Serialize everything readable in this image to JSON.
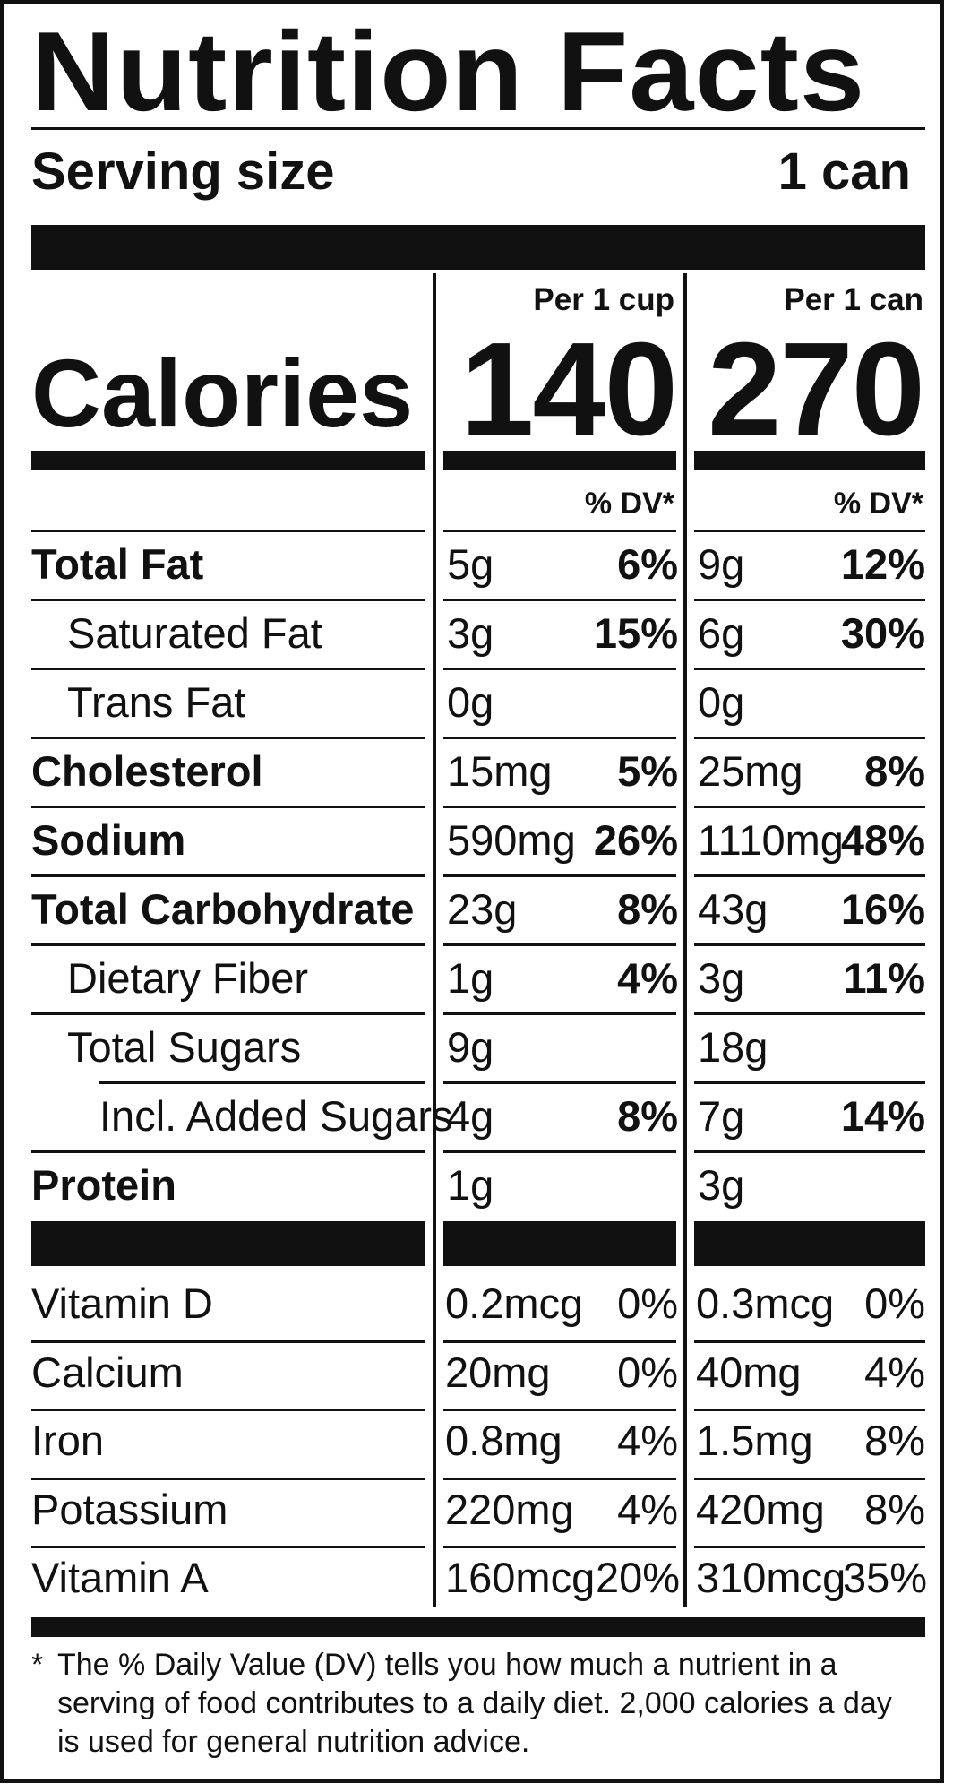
{
  "title": "Nutrition Facts",
  "serving": {
    "label": "Serving size",
    "value": "1 can"
  },
  "columns": [
    {
      "header": "Per 1 cup",
      "calories": "140",
      "dv_header": "% DV*"
    },
    {
      "header": "Per 1 can",
      "calories": "270",
      "dv_header": "% DV*"
    }
  ],
  "calories_label": "Calories",
  "nutrients": [
    {
      "name": "Total Fat",
      "bold": true,
      "indent": 0,
      "cup": {
        "amount": "5g",
        "dv": "6%"
      },
      "can": {
        "amount": "9g",
        "dv": "12%"
      }
    },
    {
      "name": "Saturated Fat",
      "bold": false,
      "indent": 1,
      "cup": {
        "amount": "3g",
        "dv": "15%"
      },
      "can": {
        "amount": "6g",
        "dv": "30%"
      }
    },
    {
      "name": "Trans Fat",
      "bold": false,
      "indent": 1,
      "cup": {
        "amount": "0g",
        "dv": ""
      },
      "can": {
        "amount": "0g",
        "dv": ""
      }
    },
    {
      "name": "Cholesterol",
      "bold": true,
      "indent": 0,
      "cup": {
        "amount": "15mg",
        "dv": "5%"
      },
      "can": {
        "amount": "25mg",
        "dv": "8%"
      }
    },
    {
      "name": "Sodium",
      "bold": true,
      "indent": 0,
      "cup": {
        "amount": "590mg",
        "dv": "26%"
      },
      "can": {
        "amount": "1110mg",
        "dv": "48%"
      }
    },
    {
      "name": "Total Carbohydrate",
      "bold": true,
      "indent": 0,
      "cup": {
        "amount": "23g",
        "dv": "8%"
      },
      "can": {
        "amount": "43g",
        "dv": "16%"
      }
    },
    {
      "name": "Dietary Fiber",
      "bold": false,
      "indent": 1,
      "cup": {
        "amount": "1g",
        "dv": "4%"
      },
      "can": {
        "amount": "3g",
        "dv": "11%"
      }
    },
    {
      "name": "Total Sugars",
      "bold": false,
      "indent": 1,
      "cup": {
        "amount": "9g",
        "dv": ""
      },
      "can": {
        "amount": "18g",
        "dv": ""
      }
    },
    {
      "name": "Incl. Added Sugars",
      "bold": false,
      "indent": 2,
      "cup": {
        "amount": "4g",
        "dv": "8%"
      },
      "can": {
        "amount": "7g",
        "dv": "14%"
      }
    },
    {
      "name": "Protein",
      "bold": true,
      "indent": 0,
      "cup": {
        "amount": "1g",
        "dv": ""
      },
      "can": {
        "amount": "3g",
        "dv": ""
      }
    }
  ],
  "vitamins": [
    {
      "name": "Vitamin D",
      "cup": {
        "amount": "0.2mcg",
        "dv": "0%"
      },
      "can": {
        "amount": "0.3mcg",
        "dv": "0%"
      }
    },
    {
      "name": "Calcium",
      "cup": {
        "amount": "20mg",
        "dv": "0%"
      },
      "can": {
        "amount": "40mg",
        "dv": "4%"
      }
    },
    {
      "name": "Iron",
      "cup": {
        "amount": "0.8mg",
        "dv": "4%"
      },
      "can": {
        "amount": "1.5mg",
        "dv": "8%"
      }
    },
    {
      "name": "Potassium",
      "cup": {
        "amount": "220mg",
        "dv": "4%"
      },
      "can": {
        "amount": "420mg",
        "dv": "8%"
      }
    },
    {
      "name": "Vitamin A",
      "cup": {
        "amount": "160mcg",
        "dv": "20%"
      },
      "can": {
        "amount": "310mcg",
        "dv": "35%"
      }
    }
  ],
  "footnote": {
    "marker": "*",
    "text": "The % Daily Value (DV) tells you how much a nutrient in a serving of food contributes to a daily diet. 2,000 calories a day is used for general nutrition advice."
  }
}
